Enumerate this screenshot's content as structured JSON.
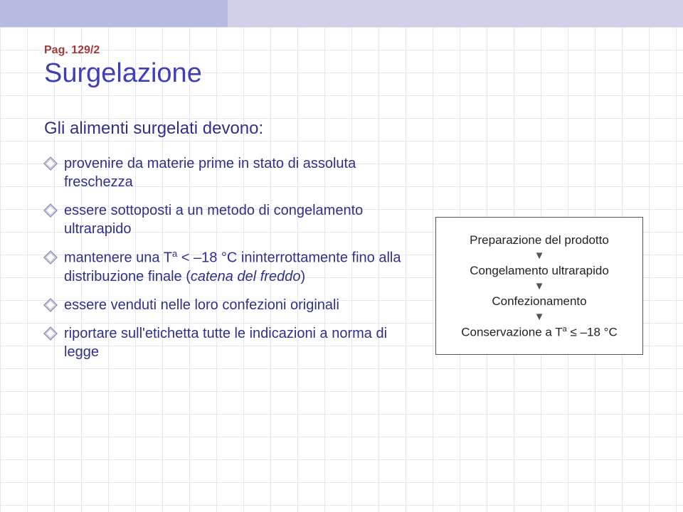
{
  "page_ref": "Pag. 129/2",
  "title": "Surgelazione",
  "title_color": "#3f3fb8",
  "body_color": "#30308a",
  "subhead": "Gli alimenti surgelati devono:",
  "bullets": [
    {
      "html": "provenire da materie prime in stato di assoluta freschezza"
    },
    {
      "html": "essere sottoposti a un metodo di congelamento ultrarapido"
    },
    {
      "html": "mantenere una T<sup>a</sup> < –18 °C ininterrottamente fino alla distribuzione finale (<span class=\"italic\">catena del freddo</span>)"
    },
    {
      "html": "essere venduti nelle loro confezioni originali"
    },
    {
      "html": "riportare sull'etichetta tutte le indicazioni a norma di legge"
    }
  ],
  "flow": {
    "steps": [
      "Preparazione del prodotto",
      "Congelamento ultrarapido",
      "Confezionamento"
    ],
    "final_html": "Conservazione a T<sup>a</sup> ≤ –18 °C",
    "arrow_glyph": "▼",
    "arrow_color": "#555555",
    "text_color": "#222222"
  },
  "colors": {
    "top_band_dark": "#b9b9df",
    "top_band_light": "#d0d0e8",
    "grid_line": "#e6e6f0",
    "page_ref_color": "#a23a3a"
  }
}
